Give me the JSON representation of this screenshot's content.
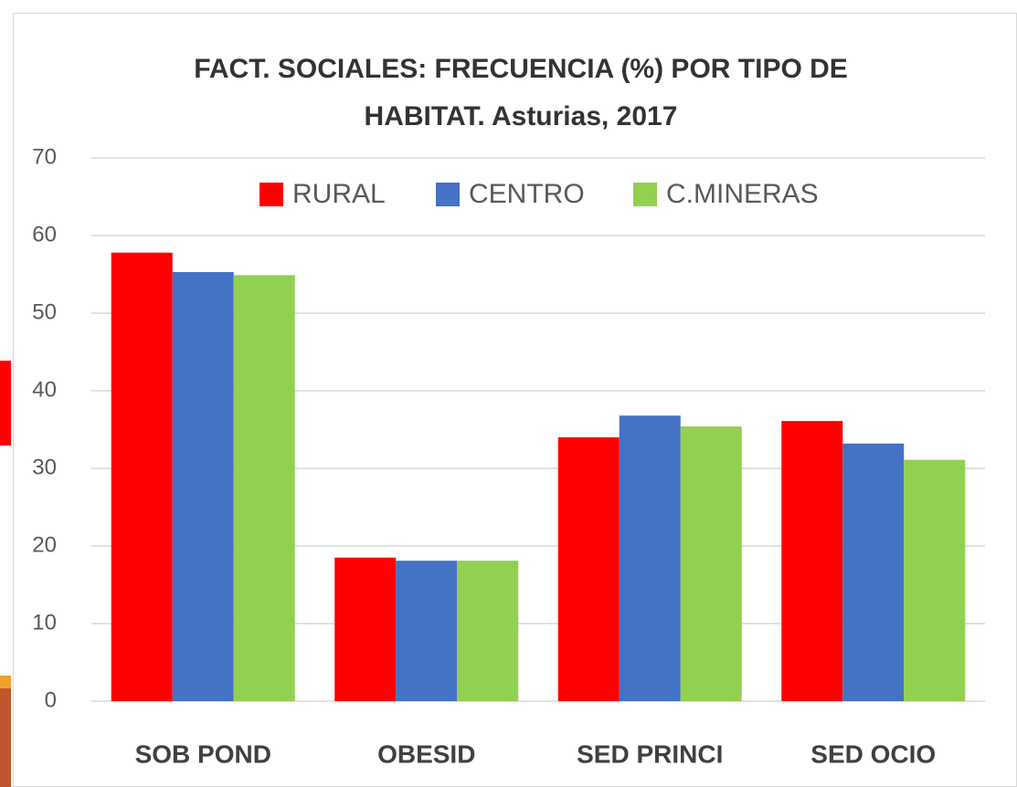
{
  "chart_data": {
    "type": "bar",
    "title": "FACT. SOCIALES: FRECUENCIA (%) POR TIPO DE HABITAT. Asturias, 2017",
    "categories": [
      "SOB POND",
      "OBESID",
      "SED PRINCI",
      "SED OCIO"
    ],
    "series": [
      {
        "name": "RURAL",
        "color": "#ff0000",
        "values": [
          57.8,
          18.5,
          34.0,
          36.1
        ]
      },
      {
        "name": "CENTRO",
        "color": "#4472c4",
        "values": [
          55.3,
          18.1,
          36.8,
          33.2
        ]
      },
      {
        "name": "C.MINERAS",
        "color": "#92d050",
        "values": [
          54.9,
          18.1,
          35.4,
          31.1
        ]
      }
    ],
    "ylim": [
      0,
      70
    ],
    "yticks": [
      0,
      10,
      20,
      30,
      40,
      50,
      60,
      70
    ],
    "grid": true,
    "legend": "top"
  }
}
